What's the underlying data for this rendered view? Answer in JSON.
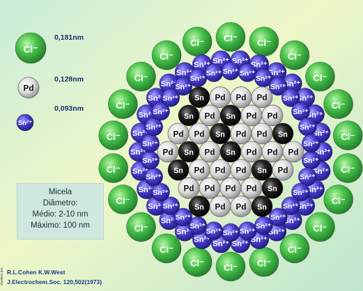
{
  "labels": {
    "chloride": "Cl⁻",
    "palladium": "Pd",
    "tin": "Sn",
    "tin_ion": "Sn²⁺"
  },
  "legend": [
    {
      "particle": "Cl⁻",
      "size": "0,181nm",
      "color": "#3cb043"
    },
    {
      "particle": "Pd",
      "size": "0,128nm",
      "color": "#d9d9d9"
    },
    {
      "particle": "Sn²⁺",
      "size": "0,093nm",
      "color": "#3a2fb5"
    }
  ],
  "info": {
    "line1": "Micela",
    "line2": "Diâmetro:",
    "line3": "Médio: 2-10 nm",
    "line4": "Máximo: 100 nm"
  },
  "credits": {
    "line1": "R.L.Cohen  K.W.West",
    "line2": "J.Electrochem.Soc. 120,502(1973)"
  },
  "side_label": "clusters pre",
  "colors": {
    "bg_top_left": "#c9ecd9",
    "bg_top_right": "#f4f3a8",
    "bg_bottom_left": "#d7f3c2",
    "bg_bottom_right": "#bfe6d0",
    "chloride": "#3cb043",
    "chloride_dark": "#1c7a2a",
    "palladium": "#d9d9d9",
    "tin": "#1a1a1a",
    "tin_ion": "#3a2fb5"
  }
}
